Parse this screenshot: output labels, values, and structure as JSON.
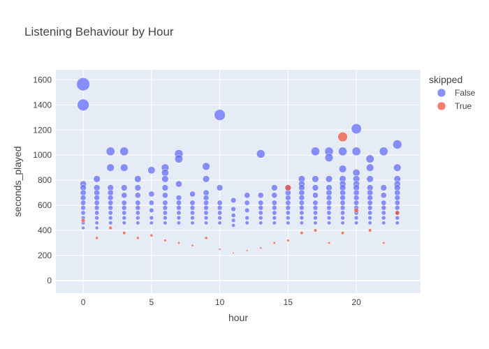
{
  "chart_data": {
    "type": "scatter",
    "title": "Listening Behaviour by Hour",
    "xlabel": "hour",
    "ylabel": "seconds_played",
    "xlim": [
      -2,
      24.7
    ],
    "ylim": [
      -100,
      1680
    ],
    "xticks": [
      0,
      5,
      10,
      15,
      20
    ],
    "yticks": [
      0,
      200,
      400,
      600,
      800,
      1000,
      1200,
      1400,
      1600
    ],
    "grid": true,
    "legend": {
      "title": "skipped",
      "position": "top-right"
    },
    "series": [
      {
        "name": "False",
        "color": "#636efa",
        "points": [
          [
            0,
            1565
          ],
          [
            0,
            1400
          ],
          [
            0,
            770
          ],
          [
            0,
            740
          ],
          [
            0,
            700
          ],
          [
            0,
            660
          ],
          [
            0,
            620
          ],
          [
            0,
            580
          ],
          [
            0,
            540
          ],
          [
            0,
            500
          ],
          [
            0,
            460
          ],
          [
            0,
            420
          ],
          [
            1,
            810
          ],
          [
            1,
            740
          ],
          [
            1,
            700
          ],
          [
            1,
            660
          ],
          [
            1,
            620
          ],
          [
            1,
            580
          ],
          [
            1,
            540
          ],
          [
            1,
            500
          ],
          [
            1,
            460
          ],
          [
            1,
            420
          ],
          [
            2,
            1030
          ],
          [
            2,
            900
          ],
          [
            2,
            740
          ],
          [
            2,
            700
          ],
          [
            2,
            660
          ],
          [
            2,
            620
          ],
          [
            2,
            580
          ],
          [
            2,
            540
          ],
          [
            2,
            500
          ],
          [
            2,
            460
          ],
          [
            3,
            1030
          ],
          [
            3,
            900
          ],
          [
            3,
            740
          ],
          [
            3,
            680
          ],
          [
            3,
            620
          ],
          [
            3,
            580
          ],
          [
            3,
            540
          ],
          [
            3,
            500
          ],
          [
            3,
            460
          ],
          [
            4,
            810
          ],
          [
            4,
            740
          ],
          [
            4,
            680
          ],
          [
            4,
            620
          ],
          [
            4,
            580
          ],
          [
            4,
            540
          ],
          [
            4,
            500
          ],
          [
            4,
            460
          ],
          [
            5,
            880
          ],
          [
            5,
            690
          ],
          [
            5,
            620
          ],
          [
            5,
            560
          ],
          [
            5,
            500
          ],
          [
            5,
            460
          ],
          [
            6,
            900
          ],
          [
            6,
            860
          ],
          [
            6,
            810
          ],
          [
            6,
            740
          ],
          [
            6,
            680
          ],
          [
            6,
            620
          ],
          [
            6,
            580
          ],
          [
            6,
            540
          ],
          [
            6,
            500
          ],
          [
            6,
            460
          ],
          [
            7,
            1010
          ],
          [
            7,
            970
          ],
          [
            7,
            770
          ],
          [
            7,
            660
          ],
          [
            7,
            620
          ],
          [
            7,
            580
          ],
          [
            7,
            540
          ],
          [
            7,
            500
          ],
          [
            7,
            460
          ],
          [
            8,
            690
          ],
          [
            8,
            620
          ],
          [
            8,
            580
          ],
          [
            8,
            540
          ],
          [
            8,
            500
          ],
          [
            8,
            460
          ],
          [
            9,
            910
          ],
          [
            9,
            810
          ],
          [
            9,
            700
          ],
          [
            9,
            660
          ],
          [
            9,
            620
          ],
          [
            9,
            580
          ],
          [
            9,
            540
          ],
          [
            9,
            500
          ],
          [
            9,
            460
          ],
          [
            10,
            1320
          ],
          [
            10,
            740
          ],
          [
            10,
            620
          ],
          [
            10,
            580
          ],
          [
            10,
            540
          ],
          [
            10,
            500
          ],
          [
            10,
            460
          ],
          [
            11,
            640
          ],
          [
            11,
            570
          ],
          [
            11,
            520
          ],
          [
            11,
            480
          ],
          [
            11,
            440
          ],
          [
            12,
            680
          ],
          [
            12,
            620
          ],
          [
            12,
            560
          ],
          [
            12,
            500
          ],
          [
            12,
            460
          ],
          [
            13,
            1010
          ],
          [
            13,
            680
          ],
          [
            13,
            620
          ],
          [
            13,
            580
          ],
          [
            13,
            540
          ],
          [
            13,
            500
          ],
          [
            13,
            460
          ],
          [
            14,
            740
          ],
          [
            14,
            680
          ],
          [
            14,
            620
          ],
          [
            14,
            580
          ],
          [
            14,
            540
          ],
          [
            14,
            500
          ],
          [
            14,
            460
          ],
          [
            15,
            740
          ],
          [
            15,
            700
          ],
          [
            15,
            660
          ],
          [
            15,
            620
          ],
          [
            15,
            580
          ],
          [
            15,
            540
          ],
          [
            15,
            500
          ],
          [
            15,
            460
          ],
          [
            16,
            810
          ],
          [
            16,
            770
          ],
          [
            16,
            740
          ],
          [
            16,
            700
          ],
          [
            16,
            660
          ],
          [
            16,
            620
          ],
          [
            16,
            580
          ],
          [
            16,
            540
          ],
          [
            16,
            500
          ],
          [
            16,
            460
          ],
          [
            17,
            1030
          ],
          [
            17,
            810
          ],
          [
            17,
            740
          ],
          [
            17,
            680
          ],
          [
            17,
            620
          ],
          [
            17,
            580
          ],
          [
            17,
            540
          ],
          [
            17,
            500
          ],
          [
            17,
            460
          ],
          [
            18,
            1030
          ],
          [
            18,
            980
          ],
          [
            18,
            810
          ],
          [
            18,
            740
          ],
          [
            18,
            700
          ],
          [
            18,
            660
          ],
          [
            18,
            620
          ],
          [
            18,
            580
          ],
          [
            18,
            540
          ],
          [
            18,
            500
          ],
          [
            18,
            460
          ],
          [
            19,
            1030
          ],
          [
            19,
            890
          ],
          [
            19,
            810
          ],
          [
            19,
            770
          ],
          [
            19,
            740
          ],
          [
            19,
            700
          ],
          [
            19,
            660
          ],
          [
            19,
            620
          ],
          [
            19,
            580
          ],
          [
            19,
            540
          ],
          [
            19,
            500
          ],
          [
            19,
            460
          ],
          [
            20,
            1210
          ],
          [
            20,
            1030
          ],
          [
            20,
            860
          ],
          [
            20,
            810
          ],
          [
            20,
            770
          ],
          [
            20,
            740
          ],
          [
            20,
            700
          ],
          [
            20,
            660
          ],
          [
            20,
            620
          ],
          [
            20,
            580
          ],
          [
            20,
            540
          ],
          [
            20,
            500
          ],
          [
            20,
            460
          ],
          [
            21,
            970
          ],
          [
            21,
            900
          ],
          [
            21,
            810
          ],
          [
            21,
            740
          ],
          [
            21,
            700
          ],
          [
            21,
            660
          ],
          [
            21,
            620
          ],
          [
            21,
            580
          ],
          [
            21,
            540
          ],
          [
            21,
            500
          ],
          [
            21,
            460
          ],
          [
            22,
            1030
          ],
          [
            22,
            740
          ],
          [
            22,
            680
          ],
          [
            22,
            620
          ],
          [
            22,
            580
          ],
          [
            22,
            540
          ],
          [
            22,
            500
          ],
          [
            22,
            460
          ],
          [
            23,
            1085
          ],
          [
            23,
            900
          ],
          [
            23,
            810
          ],
          [
            23,
            770
          ],
          [
            23,
            740
          ],
          [
            23,
            700
          ],
          [
            23,
            660
          ],
          [
            23,
            620
          ],
          [
            23,
            580
          ],
          [
            23,
            540
          ],
          [
            23,
            500
          ],
          [
            23,
            460
          ]
        ]
      },
      {
        "name": "True",
        "color": "#ef553b",
        "points": [
          [
            0,
            480
          ],
          [
            1,
            340
          ],
          [
            2,
            420
          ],
          [
            3,
            380
          ],
          [
            4,
            340
          ],
          [
            5,
            360
          ],
          [
            6,
            320
          ],
          [
            7,
            300
          ],
          [
            8,
            280
          ],
          [
            9,
            340
          ],
          [
            10,
            250
          ],
          [
            11,
            220
          ],
          [
            12,
            240
          ],
          [
            13,
            260
          ],
          [
            14,
            300
          ],
          [
            15,
            740
          ],
          [
            15,
            320
          ],
          [
            16,
            380
          ],
          [
            17,
            400
          ],
          [
            18,
            300
          ],
          [
            19,
            1145
          ],
          [
            19,
            380
          ],
          [
            20,
            560
          ],
          [
            21,
            400
          ],
          [
            22,
            300
          ],
          [
            23,
            540
          ]
        ]
      }
    ]
  }
}
